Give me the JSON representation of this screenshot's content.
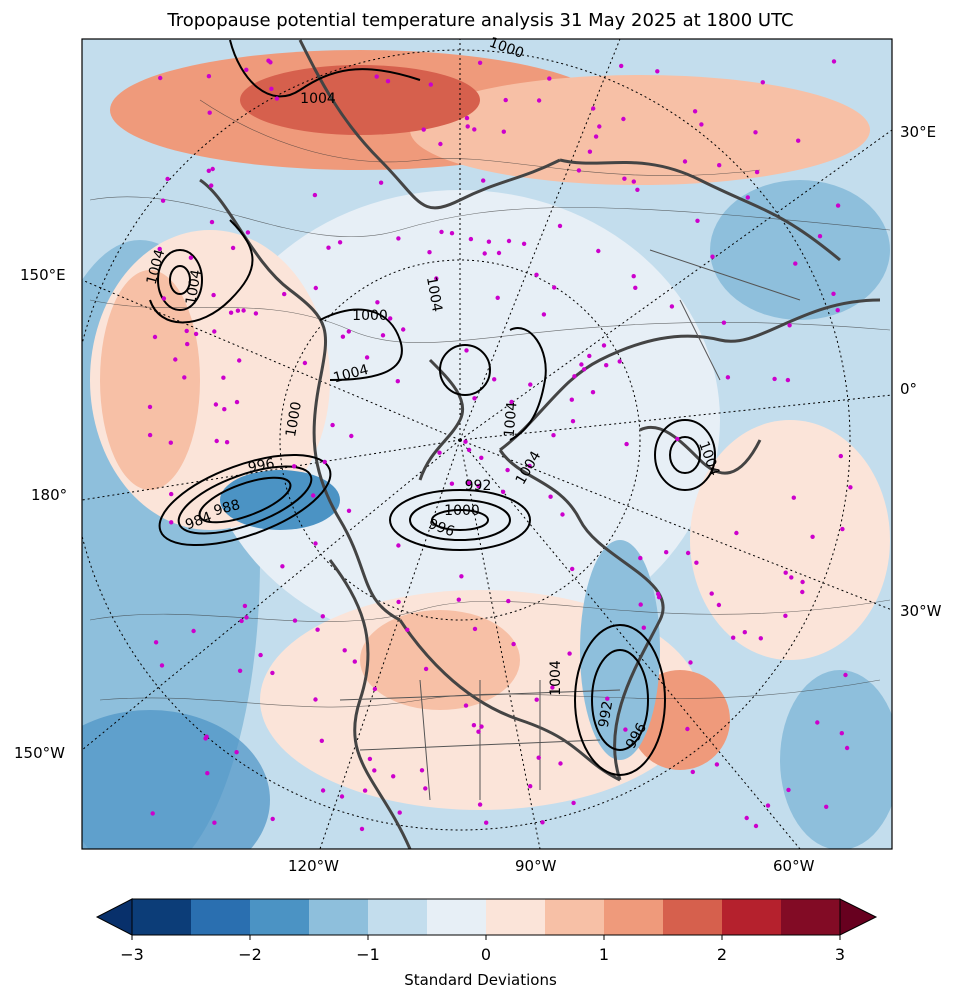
{
  "title": "Tropopause potential temperature analysis 31 May 2025 at 1800 UTC",
  "longitude_labels": {
    "left": [
      "150°E",
      "180°",
      "150°W"
    ],
    "right": [
      "30°E",
      "0°",
      "30°W"
    ],
    "bottom": [
      "120°W",
      "90°W",
      "60°W"
    ]
  },
  "contour_labels": [
    "1004",
    "1004",
    "1004",
    "1000",
    "1004",
    "1004",
    "1000",
    "1004",
    "1004",
    "996",
    "988",
    "984",
    "992",
    "1000",
    "996",
    "1004",
    "992",
    "996",
    "1004",
    "1000"
  ],
  "colorbar": {
    "label": "Standard Deviations",
    "ticks": [
      "−3",
      "−2",
      "−1",
      "0",
      "1",
      "2",
      "3"
    ],
    "colors": [
      "#0c3d78",
      "#2a6fb0",
      "#4b93c4",
      "#8ebfdc",
      "#c3dded",
      "#e7eff6",
      "#fbe4d9",
      "#f7c0a6",
      "#ef9a7b",
      "#d6604d",
      "#b5212d",
      "#820b25"
    ],
    "extend_low": "#08306b",
    "extend_high": "#67001f"
  },
  "colors": {
    "station_marker": "#cc00cc",
    "coastline": "#444444",
    "contour": "#000000"
  }
}
